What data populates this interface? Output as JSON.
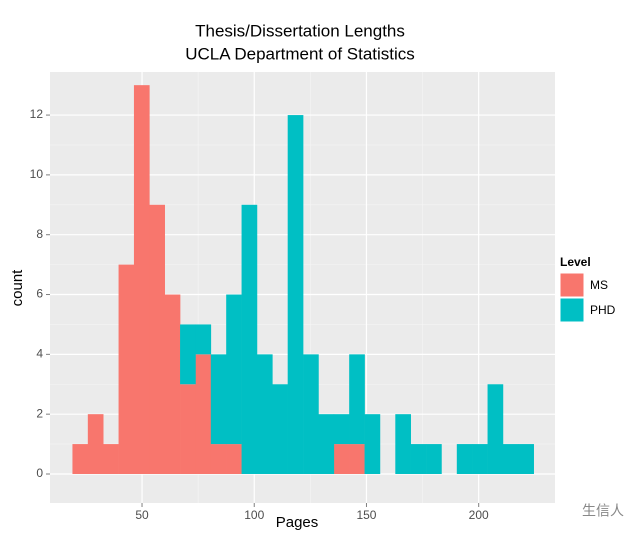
{
  "chart_data": {
    "type": "histogram",
    "title": "Thesis/Dissertation Lengths",
    "subtitle": "UCLA Department of Statistics",
    "x_label": "Pages",
    "y_label": "count",
    "bins": [
      19,
      25.85,
      32.7,
      39.55,
      46.4,
      53.25,
      60.1,
      66.95,
      73.8,
      80.65,
      87.5,
      94.35,
      101.2,
      108.05,
      114.9,
      121.75,
      128.6,
      135.45,
      142.3,
      149.15,
      156,
      162.85,
      169.7,
      176.55,
      183.4,
      190.25,
      197.1,
      203.95,
      210.8,
      217.65,
      224.5
    ],
    "series": [
      {
        "name": "MS",
        "color": "#F8766D",
        "values": [
          1,
          2,
          1,
          7,
          13,
          9,
          6,
          3,
          4,
          1,
          1,
          0,
          0,
          0,
          0,
          0,
          0,
          1,
          1,
          0,
          0,
          0,
          0,
          0,
          0,
          0,
          0,
          0,
          0,
          0
        ]
      },
      {
        "name": "PHD",
        "color": "#00BFC4",
        "values": [
          0,
          0,
          0,
          0,
          0,
          0,
          0,
          2,
          1,
          3,
          5,
          9,
          4,
          3,
          12,
          4,
          2,
          1,
          3,
          2,
          0,
          2,
          1,
          1,
          0,
          1,
          1,
          3,
          1,
          1
        ]
      }
    ],
    "stacked": true,
    "legend_title": "Level",
    "legend_position": "right",
    "xlim": [
      9,
      234
    ],
    "xticks": [
      50,
      100,
      150,
      200
    ],
    "ylim": [
      -0.97,
      13.44
    ],
    "yticks": [
      0,
      2,
      4,
      6,
      8,
      10,
      12
    ],
    "grid": true
  },
  "watermark": "生信人"
}
